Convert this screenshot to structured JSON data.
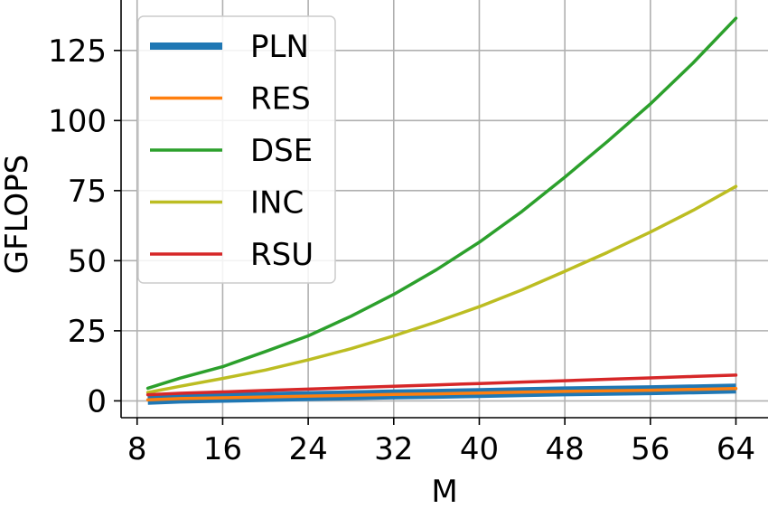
{
  "chart_data": {
    "type": "line",
    "xlabel": "M",
    "ylabel": "GFLOPS",
    "xlim": [
      6.5,
      67
    ],
    "ylim": [
      -6,
      143
    ],
    "xticks": [
      8,
      16,
      24,
      32,
      40,
      48,
      56,
      64
    ],
    "yticks": [
      0,
      25,
      50,
      75,
      100,
      125
    ],
    "grid": true,
    "legend_position": "upper-left",
    "x": [
      9,
      12,
      16,
      20,
      24,
      28,
      32,
      36,
      40,
      44,
      48,
      52,
      56,
      60,
      64
    ],
    "series": [
      {
        "name": "PLN",
        "color": "#1f77b4",
        "style": "thick",
        "values": [
          0.4,
          0.8,
          1.1,
          1.4,
          1.7,
          2.0,
          2.3,
          2.5,
          2.8,
          3.1,
          3.4,
          3.6,
          3.8,
          4.1,
          4.4
        ]
      },
      {
        "name": "RES",
        "color": "#ff7f0e",
        "style": "normal",
        "values": [
          0.4,
          0.8,
          1.1,
          1.4,
          1.7,
          2.0,
          2.3,
          2.5,
          2.8,
          3.1,
          3.4,
          3.6,
          3.8,
          4.1,
          4.4
        ]
      },
      {
        "name": "DSE",
        "color": "#2ca02c",
        "style": "normal",
        "values": [
          4.5,
          8.1,
          12.2,
          17.6,
          23.2,
          30.2,
          38.0,
          46.8,
          56.6,
          67.6,
          79.8,
          92.6,
          105.9,
          120.6,
          136.5
        ]
      },
      {
        "name": "INC",
        "color": "#bcbd22",
        "style": "normal",
        "values": [
          3.0,
          5.2,
          8.0,
          11.0,
          14.6,
          18.6,
          23.2,
          28.2,
          33.6,
          39.6,
          46.2,
          53.0,
          60.2,
          68.0,
          76.5
        ]
      },
      {
        "name": "RSU",
        "color": "#d62728",
        "style": "normal",
        "values": [
          2.2,
          2.7,
          3.2,
          3.7,
          4.2,
          4.7,
          5.2,
          5.7,
          6.2,
          6.7,
          7.2,
          7.7,
          8.2,
          8.7,
          9.2
        ]
      }
    ]
  }
}
